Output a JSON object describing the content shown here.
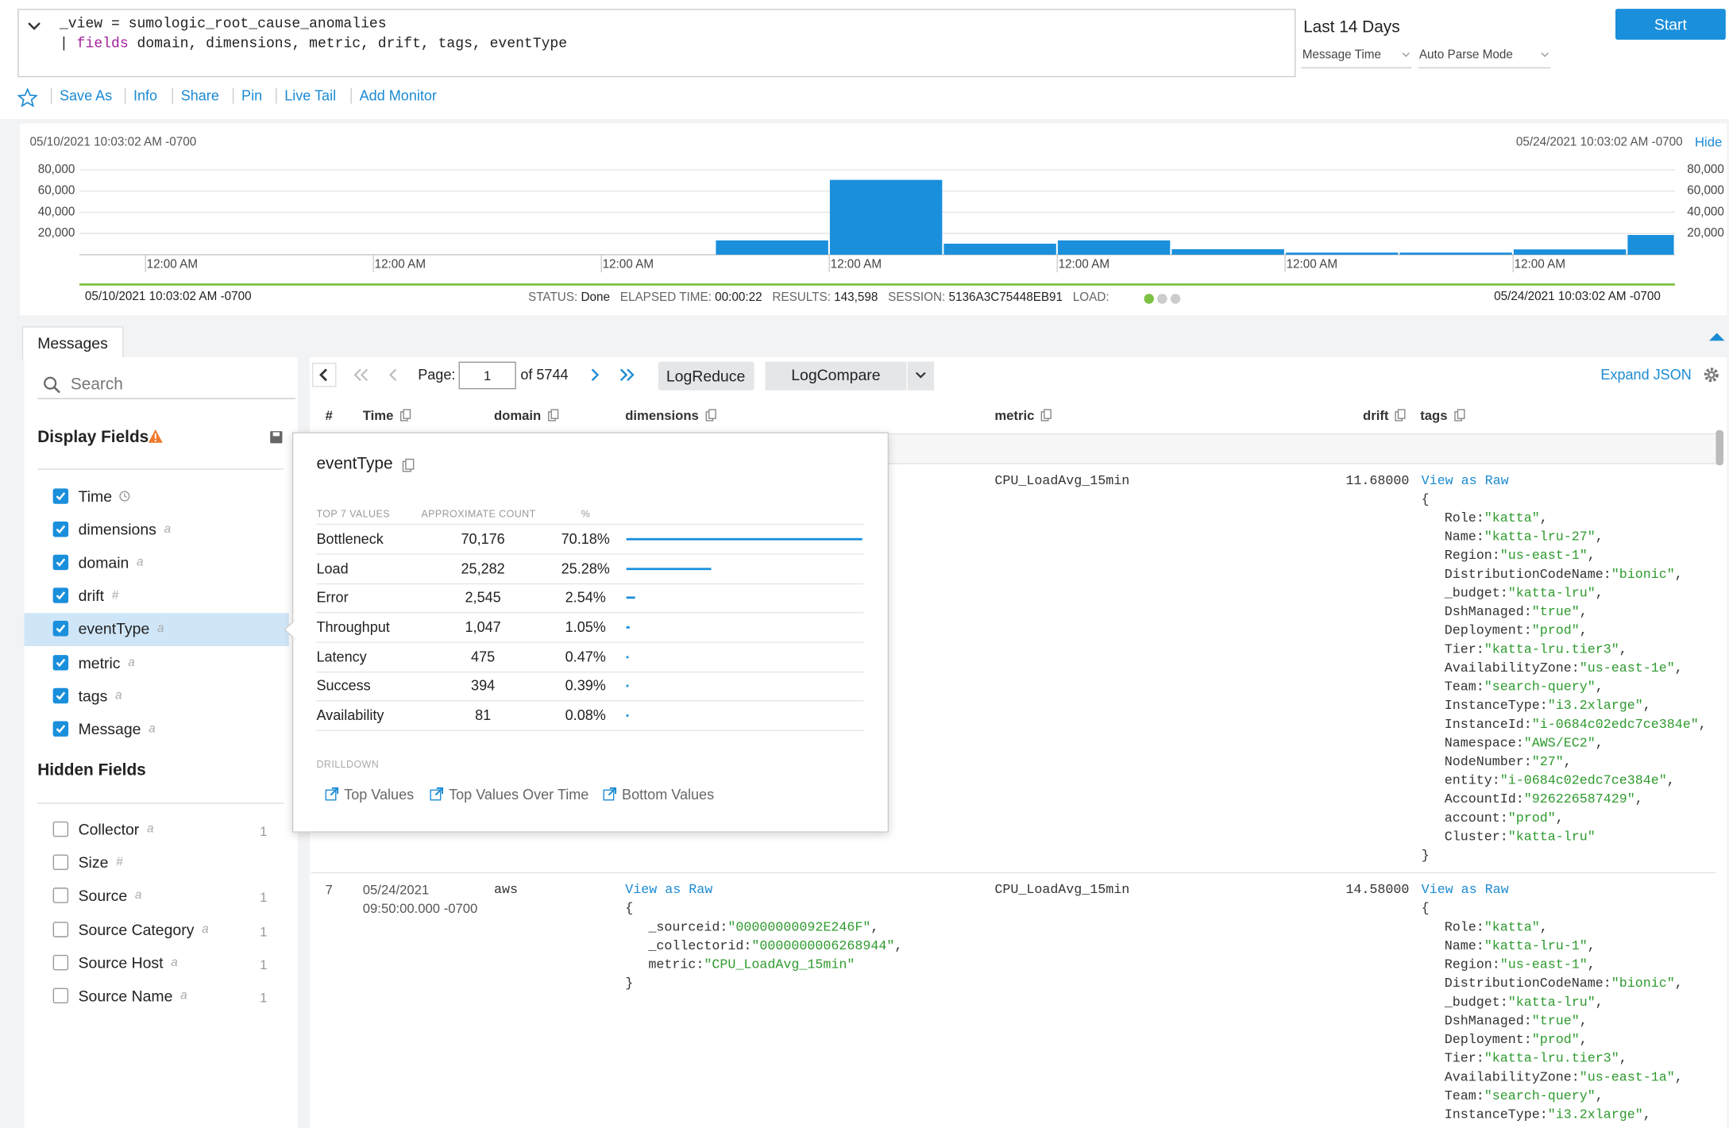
{
  "query": {
    "line1": "_view = sumologic_root_cause_anomalies",
    "pipe": "|",
    "keyword": "fields",
    "line2_rest": "domain, dimensions, metric, drift, tags, eventType"
  },
  "time_range": {
    "label": "Last 14 Days",
    "time_mode": "Message Time",
    "parse_mode": "Auto Parse Mode",
    "start_button": "Start"
  },
  "toolbar": [
    "Save As",
    "Info",
    "Share",
    "Pin",
    "Live Tail",
    "Add Monitor"
  ],
  "histogram": {
    "start_label": "05/10/2021 10:03:02 AM -0700",
    "end_label": "05/24/2021 10:03:02 AM -0700",
    "hide": "Hide",
    "chart_data": {
      "type": "histogram",
      "bins": [
        5.58,
        6.58,
        7.58,
        8.58,
        9.58,
        10.58,
        11.58,
        12.58,
        13.58,
        14
      ],
      "values": [
        13500,
        70500,
        10400,
        13500,
        5200,
        2000,
        2000,
        5000,
        18600
      ],
      "color": "#1a8fdc",
      "xlim": [
        0,
        14
      ],
      "xticks": [
        {
          "value": 0.58,
          "label": "12:00 AM"
        },
        {
          "value": 2.58,
          "label": "12:00 AM"
        },
        {
          "value": 4.58,
          "label": "12:00 AM"
        },
        {
          "value": 6.58,
          "label": "12:00 AM"
        },
        {
          "value": 8.58,
          "label": "12:00 AM"
        },
        {
          "value": 10.58,
          "label": "12:00 AM"
        },
        {
          "value": 12.58,
          "label": "12:00 AM"
        }
      ],
      "ylim": [
        0,
        80000
      ],
      "yticks": [
        {
          "value": 20000,
          "label": "20,000"
        },
        {
          "value": 40000,
          "label": "40,000"
        },
        {
          "value": 60000,
          "label": "60,000"
        },
        {
          "value": 80000,
          "label": "80,000"
        }
      ],
      "grid": true
    }
  },
  "status": {
    "start": "05/10/2021 10:03:02 AM -0700",
    "end": "05/24/2021 10:03:02 AM -0700",
    "items": [
      {
        "label": "STATUS:",
        "value": "Done"
      },
      {
        "label": "ELAPSED TIME:",
        "value": "00:00:22"
      },
      {
        "label": "RESULTS:",
        "value": "143,598"
      },
      {
        "label": "SESSION:",
        "value": "5136A3C75448EB91"
      }
    ],
    "load": "LOAD:"
  },
  "tab": "Messages",
  "sidebar": {
    "search": "Search",
    "display_title": "Display Fields",
    "display_fields": [
      {
        "name": "Time"
      },
      {
        "name": "dimensions",
        "type": "a"
      },
      {
        "name": "domain",
        "type": "a"
      },
      {
        "name": "drift",
        "type": "#"
      },
      {
        "name": "eventType",
        "type": "a"
      },
      {
        "name": "metric",
        "type": "a"
      },
      {
        "name": "tags",
        "type": "a"
      },
      {
        "name": "Message",
        "type": "a"
      }
    ],
    "hidden_title": "Hidden Fields",
    "hidden_fields": [
      {
        "name": "Collector",
        "type": "a",
        "count": 1
      },
      {
        "name": "Size",
        "type": "#"
      },
      {
        "name": "Source",
        "type": "a",
        "count": 1
      },
      {
        "name": "Source Category",
        "type": "a",
        "count": 1
      },
      {
        "name": "Source Host",
        "type": "a",
        "count": 1
      },
      {
        "name": "Source Name",
        "type": "a",
        "count": 1
      }
    ]
  },
  "pager": {
    "page_label": "Page:",
    "page": 1,
    "of_label": "of 5744",
    "log_reduce": "LogReduce",
    "log_compare": "LogCompare",
    "expand_json": "Expand JSON"
  },
  "columns": [
    "#",
    "Time",
    "domain",
    "dimensions",
    "metric",
    "drift",
    "tags"
  ],
  "rows": [
    {
      "metric": "CPU_LoadAvg_15min",
      "drift": "11.68000",
      "tags": {
        "view_raw": "View as Raw",
        "open": "{",
        "close": "}",
        "entries": [
          {
            "key": "Role:",
            "value": "\"katta\"",
            "sep": ","
          },
          {
            "key": "Name:",
            "value": "\"katta-lru-27\"",
            "sep": ","
          },
          {
            "key": "Region:",
            "value": "\"us-east-1\"",
            "sep": ","
          },
          {
            "key": "DistributionCodeName:",
            "value": "\"bionic\"",
            "sep": ","
          },
          {
            "key": "_budget:",
            "value": "\"katta-lru\"",
            "sep": ","
          },
          {
            "key": "DshManaged:",
            "value": "\"true\"",
            "sep": ","
          },
          {
            "key": "Deployment:",
            "value": "\"prod\"",
            "sep": ","
          },
          {
            "key": "Tier:",
            "value": "\"katta-lru.tier3\"",
            "sep": ","
          },
          {
            "key": "AvailabilityZone:",
            "value": "\"us-east-1e\"",
            "sep": ","
          },
          {
            "key": "Team:",
            "value": "\"search-query\"",
            "sep": ","
          },
          {
            "key": "InstanceType:",
            "value": "\"i3.2xlarge\"",
            "sep": ","
          },
          {
            "key": "InstanceId:",
            "value": "\"i-0684c02edc7ce384e\"",
            "sep": ","
          },
          {
            "key": "Namespace:",
            "value": "\"AWS/EC2\"",
            "sep": ","
          },
          {
            "key": "NodeNumber:",
            "value": "\"27\"",
            "sep": ","
          },
          {
            "key": "entity:",
            "value": "\"i-0684c02edc7ce384e\"",
            "sep": ","
          },
          {
            "key": "AccountId:",
            "value": "\"926226587429\"",
            "sep": ","
          },
          {
            "key": "account:",
            "value": "\"prod\"",
            "sep": ","
          },
          {
            "key": "Cluster:",
            "value": "\"katta-lru\""
          }
        ]
      }
    },
    {
      "number": 7,
      "date": "05/24/2021",
      "time": "09:50:00.000 -0700",
      "domain": "aws",
      "metric": "CPU_LoadAvg_15min",
      "drift": "14.58000",
      "dimensions": {
        "view_raw": "View as Raw",
        "open": "{",
        "close": "}",
        "entries": [
          {
            "key": "_sourceid:",
            "value": "\"00000000092E246F\"",
            "sep": ","
          },
          {
            "key": "_collectorid:",
            "value": "\"0000000006268944\"",
            "sep": ","
          },
          {
            "key": "metric:",
            "value": "\"CPU_LoadAvg_15min\""
          }
        ]
      },
      "tags": {
        "view_raw": "View as Raw",
        "open": "{",
        "entries": [
          {
            "key": "Role:",
            "value": "\"katta\"",
            "sep": ","
          },
          {
            "key": "Name:",
            "value": "\"katta-lru-1\"",
            "sep": ","
          },
          {
            "key": "Region:",
            "value": "\"us-east-1\"",
            "sep": ","
          },
          {
            "key": "DistributionCodeName:",
            "value": "\"bionic\"",
            "sep": ","
          },
          {
            "key": "_budget:",
            "value": "\"katta-lru\"",
            "sep": ","
          },
          {
            "key": "DshManaged:",
            "value": "\"true\"",
            "sep": ","
          },
          {
            "key": "Deployment:",
            "value": "\"prod\"",
            "sep": ","
          },
          {
            "key": "Tier:",
            "value": "\"katta-lru.tier3\"",
            "sep": ","
          },
          {
            "key": "AvailabilityZone:",
            "value": "\"us-east-1a\"",
            "sep": ","
          },
          {
            "key": "Team:",
            "value": "\"search-query\"",
            "sep": ","
          },
          {
            "key": "InstanceType:",
            "value": "\"i3.2xlarge\"",
            "sep": ","
          }
        ]
      }
    }
  ],
  "popup": {
    "title": "eventType",
    "headers": [
      "TOP 7 VALUES",
      "APPROXIMATE COUNT",
      "%"
    ],
    "rows": [
      {
        "name": "Bottleneck",
        "count": {
          "value": 70176,
          "label": "70,176"
        },
        "percent": {
          "value": 70.18,
          "label": "70.18%"
        }
      },
      {
        "name": "Load",
        "count": {
          "value": 25282,
          "label": "25,282"
        },
        "percent": {
          "value": 25.28,
          "label": "25.28%"
        }
      },
      {
        "name": "Error",
        "count": {
          "value": 2545,
          "label": "2,545"
        },
        "percent": {
          "value": 2.54,
          "label": "2.54%"
        }
      },
      {
        "name": "Throughput",
        "count": {
          "value": 1047,
          "label": "1,047"
        },
        "percent": {
          "value": 1.05,
          "label": "1.05%"
        }
      },
      {
        "name": "Latency",
        "count": {
          "value": 475,
          "label": "475"
        },
        "percent": {
          "value": 0.47,
          "label": "0.47%"
        }
      },
      {
        "name": "Success",
        "count": {
          "value": 394,
          "label": "394"
        },
        "percent": {
          "value": 0.39,
          "label": "0.39%"
        }
      },
      {
        "name": "Availability",
        "count": {
          "value": 81,
          "label": "81"
        },
        "percent": {
          "value": 0.08,
          "label": "0.08%"
        }
      }
    ],
    "drilldown_title": "DRILLDOWN",
    "drilldown": [
      "Top Values",
      "Top Values Over Time",
      "Bottom Values"
    ]
  }
}
